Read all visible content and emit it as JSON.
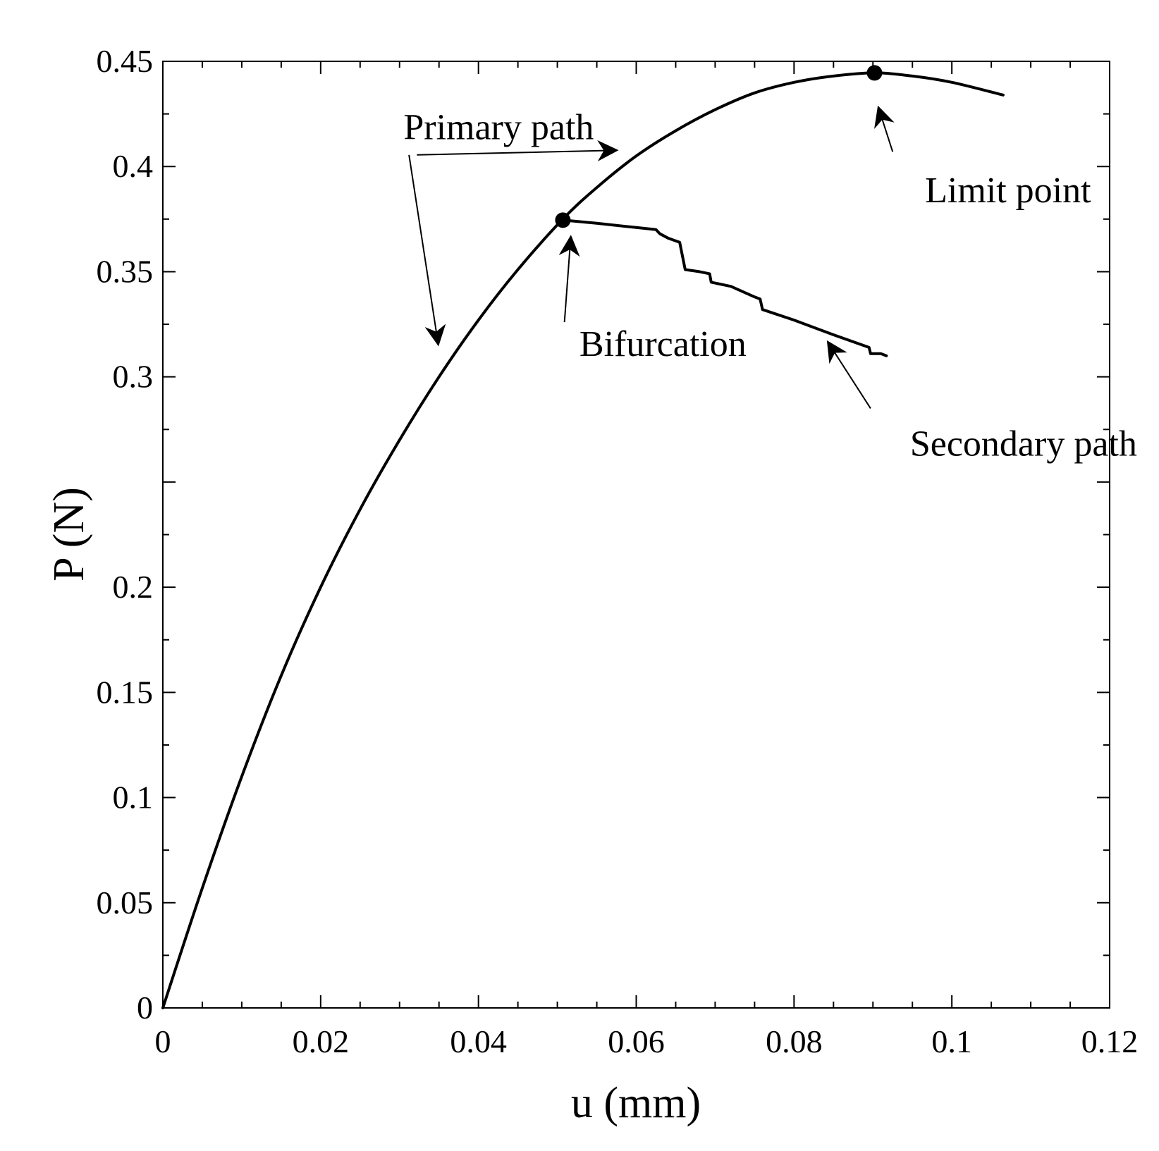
{
  "chart_data": {
    "type": "line",
    "title": "",
    "xlabel": "u (mm)",
    "ylabel": "P (N)",
    "xlim": [
      0,
      0.12
    ],
    "ylim": [
      0,
      0.45
    ],
    "grid": false,
    "x_ticks": [
      0,
      0.02,
      0.04,
      0.06,
      0.08,
      0.1,
      0.12
    ],
    "x_tick_labels": [
      "0",
      "0.02",
      "0.04",
      "0.06",
      "0.08",
      "0.1",
      "0.12"
    ],
    "y_ticks": [
      0,
      0.05,
      0.1,
      0.15,
      0.2,
      0.3,
      0.35,
      0.4,
      0.45
    ],
    "y_tick_labels": [
      "0",
      "0.05",
      "0.1",
      "0.15",
      "0.2",
      "0.3",
      "0.35",
      "0.4",
      "0.45"
    ],
    "series": [
      {
        "name": "Primary path",
        "x": [
          0,
          0.005,
          0.01,
          0.015,
          0.02,
          0.025,
          0.03,
          0.035,
          0.04,
          0.045,
          0.0507,
          0.055,
          0.06,
          0.065,
          0.07,
          0.075,
          0.08,
          0.085,
          0.0902,
          0.095,
          0.1,
          0.1065
        ],
        "y": [
          0,
          0.057,
          0.11,
          0.158,
          0.2,
          0.237,
          0.27,
          0.3,
          0.327,
          0.351,
          0.375,
          0.39,
          0.405,
          0.417,
          0.427,
          0.435,
          0.44,
          0.443,
          0.4445,
          0.443,
          0.44,
          0.434
        ]
      },
      {
        "name": "Secondary path",
        "x": [
          0.0507,
          0.055,
          0.06,
          0.0625,
          0.063,
          0.064,
          0.0655,
          0.0662,
          0.068,
          0.0693,
          0.0695,
          0.072,
          0.075,
          0.0757,
          0.076,
          0.08,
          0.085,
          0.0895,
          0.0897,
          0.091,
          0.0917
        ],
        "y": [
          0.3745,
          0.373,
          0.371,
          0.37,
          0.368,
          0.366,
          0.364,
          0.351,
          0.35,
          0.349,
          0.345,
          0.343,
          0.338,
          0.337,
          0.332,
          0.327,
          0.32,
          0.314,
          0.311,
          0.311,
          0.31
        ]
      }
    ],
    "markers": [
      {
        "name": "Bifurcation",
        "x": 0.0507,
        "y": 0.3745
      },
      {
        "name": "Limit point",
        "x": 0.0902,
        "y": 0.4445
      }
    ],
    "annotations": [
      {
        "id": "primary",
        "text": "Primary path",
        "anchor_x": 0.0305,
        "anchor_y": 0.413,
        "arrows": [
          {
            "from": [
              0.0322,
              0.4055
            ],
            "to": [
              0.0575,
              0.4077
            ]
          },
          {
            "from": [
              0.0312,
              0.4055
            ],
            "to": [
              0.0349,
              0.3155
            ]
          }
        ]
      },
      {
        "id": "bifurcation",
        "text": "Bifurcation",
        "anchor_x": 0.0528,
        "anchor_y": 0.31,
        "arrows": [
          {
            "from": [
              0.0509,
              0.326
            ],
            "to": [
              0.0517,
              0.3665
            ]
          }
        ]
      },
      {
        "id": "limit",
        "text": "Limit point",
        "anchor_x": 0.0966,
        "anchor_y": 0.383,
        "arrows": [
          {
            "from": [
              0.0925,
              0.407
            ],
            "to": [
              0.0907,
              0.428
            ]
          }
        ]
      },
      {
        "id": "secondary",
        "text": "Secondary path",
        "anchor_x": 0.0947,
        "anchor_y": 0.2625,
        "arrows": [
          {
            "from": [
              0.0897,
              0.285
            ],
            "to": [
              0.0843,
              0.3165
            ]
          }
        ]
      }
    ]
  }
}
